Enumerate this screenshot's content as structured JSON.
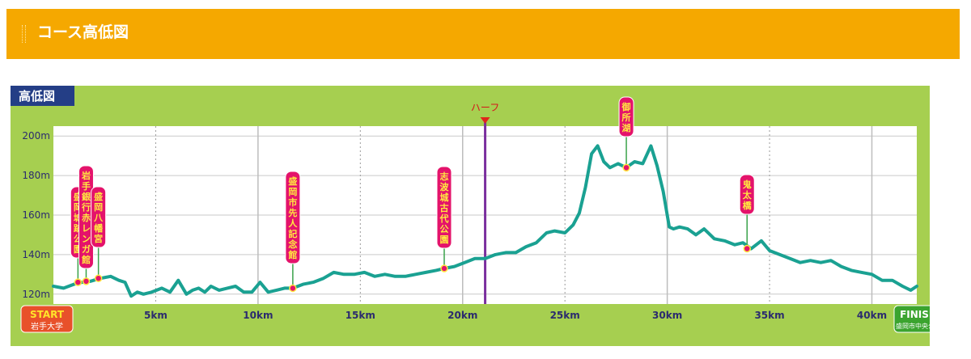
{
  "header": {
    "title": "コース高低図"
  },
  "chart_data": {
    "type": "line",
    "title": "高低図",
    "xlabel": "",
    "ylabel": "",
    "xlim": [
      0,
      42.195
    ],
    "ylim": [
      115,
      205
    ],
    "grid": true,
    "line_color": "#1aa192",
    "background_color": "#a6cf50",
    "y_ticks": [
      120,
      140,
      160,
      180,
      200
    ],
    "y_tick_labels": [
      "120m",
      "140m",
      "160m",
      "180m",
      "200m"
    ],
    "x_ticks": [
      5,
      10,
      15,
      20,
      25,
      30,
      35,
      40
    ],
    "x_tick_labels": [
      "5km",
      "10km",
      "15km",
      "20km",
      "25km",
      "30km",
      "35km",
      "40km"
    ],
    "start_label": "START",
    "start_sub": "岩手大学",
    "finish_label": "FINISH",
    "finish_sub": "盛岡市中央公園",
    "half_marker": {
      "x": 21.1,
      "label": "ハーフ"
    },
    "landmarks": [
      {
        "name": "盛岡城跡公園",
        "x": 1.2,
        "y": 126
      },
      {
        "name": "岩手銀行赤レンガ館",
        "x": 1.6,
        "y": 126.5
      },
      {
        "name": "盛岡八幡宮",
        "x": 2.2,
        "y": 128
      },
      {
        "name": "盛岡市先人記念館",
        "x": 11.7,
        "y": 123
      },
      {
        "name": "志波城古代公園",
        "x": 19.1,
        "y": 133
      },
      {
        "name": "御所湖",
        "x": 28.0,
        "y": 184
      },
      {
        "name": "鬼太橋",
        "x": 33.9,
        "y": 143
      }
    ],
    "series": [
      {
        "x": [
          0,
          0.5,
          1.0,
          1.4,
          1.8,
          2.3,
          2.8,
          3.2,
          3.5,
          3.8,
          4.1,
          4.4,
          4.8,
          5.3,
          5.7,
          6.1,
          6.5,
          6.8,
          7.1,
          7.4,
          7.7,
          8.1,
          8.5,
          8.9,
          9.3,
          9.7,
          10.1,
          10.5,
          10.9,
          11.3,
          11.7,
          12.2,
          12.7,
          13.2,
          13.7,
          14.2,
          14.7,
          15.2,
          15.7,
          16.2,
          16.7,
          17.2,
          17.7,
          18.2,
          18.7,
          19.1,
          19.6,
          20.1,
          20.6,
          21.1,
          21.6,
          22.1,
          22.6,
          23.1,
          23.6,
          24.1,
          24.5,
          25.0,
          25.4,
          25.7,
          26.0,
          26.3,
          26.6,
          26.9,
          27.2,
          27.6,
          28.0,
          28.4,
          28.8,
          29.2,
          29.5,
          29.8,
          30.1,
          30.3,
          30.6,
          31.0,
          31.4,
          31.8,
          32.3,
          32.8,
          33.3,
          33.7,
          34.1,
          34.6,
          35.0,
          35.5,
          36.0,
          36.5,
          37.0,
          37.5,
          38.0,
          38.5,
          39.0,
          39.5,
          40.0,
          40.5,
          41.0,
          41.5,
          41.9,
          42.195
        ],
        "y": [
          124,
          123,
          125,
          126,
          126.5,
          128,
          129,
          127,
          126,
          119,
          121,
          120,
          121,
          123,
          121,
          127,
          120,
          122,
          123,
          121,
          124,
          122,
          123,
          124,
          121,
          121,
          126,
          121,
          122,
          123,
          123,
          125,
          126,
          128,
          131,
          130,
          130,
          131,
          129,
          130,
          129,
          129,
          130,
          131,
          132,
          133,
          134,
          136,
          138,
          138,
          140,
          141,
          141,
          144,
          146,
          151,
          152,
          151,
          155,
          161,
          174,
          191,
          195,
          187,
          184,
          186,
          184,
          187,
          186,
          195,
          185,
          172,
          154,
          153,
          154,
          153,
          150,
          153,
          148,
          147,
          145,
          146,
          143,
          147,
          142,
          140,
          138,
          136,
          137,
          136,
          137,
          134,
          132,
          131,
          130,
          127,
          127,
          124,
          122,
          124
        ]
      }
    ]
  }
}
